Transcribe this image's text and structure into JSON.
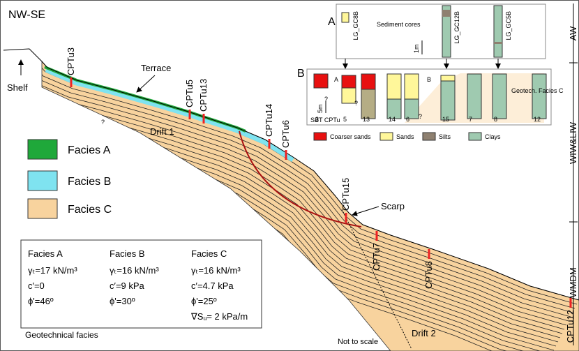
{
  "title": "NW-SE",
  "labels": {
    "shelf": "Shelf",
    "terrace": "Terrace",
    "drift1": "Drift 1",
    "drift2": "Drift 2",
    "scarp": "Scarp",
    "note": "Not to scale",
    "question": "?"
  },
  "cpts": [
    "CPTu3",
    "CPTu5",
    "CPTu13",
    "CPTu14",
    "CPTu6",
    "CPTu15",
    "CPTu7",
    "CPTu8",
    "CPTu12"
  ],
  "legend": [
    "Facies A",
    "Facies B",
    "Facies C"
  ],
  "facies_table": {
    "columns": [
      {
        "name": "Facies A",
        "rows": [
          "γₜ=17 kN/m³",
          "c′=0",
          "ϕ'=46º"
        ]
      },
      {
        "name": "Facies B",
        "rows": [
          "γₜ=16 kN/m³",
          "c′=9 kPa",
          "ϕ'=30º"
        ]
      },
      {
        "name": "Facies C",
        "rows": [
          "γₜ=16 kN/m³",
          "c′=4.7 kPa",
          "ϕ'=25º",
          "∇Sᵤ= 2 kPa/m"
        ]
      }
    ],
    "caption": "Geotechnical facies"
  },
  "water_masses": [
    "AW",
    "WIW&LIW",
    "WMDM"
  ],
  "inset_a": {
    "label": "A",
    "title": "Sediment cores",
    "cores": [
      "LG_GC8B",
      "LG_GC12B",
      "LG_GC5B"
    ],
    "scale": "1m"
  },
  "inset_b": {
    "label": "B",
    "title": "SBT CPTu",
    "scale": "5m",
    "columns": [
      "3",
      "5",
      "13",
      "14",
      "6",
      "15",
      "7",
      "8",
      "12"
    ],
    "group_a": "A",
    "group_b": "B",
    "facies": "Geotech. Facies C",
    "question": "?"
  },
  "sbt_legend": [
    "Coarser sands",
    "Sands",
    "Silts",
    "Clays"
  ]
}
